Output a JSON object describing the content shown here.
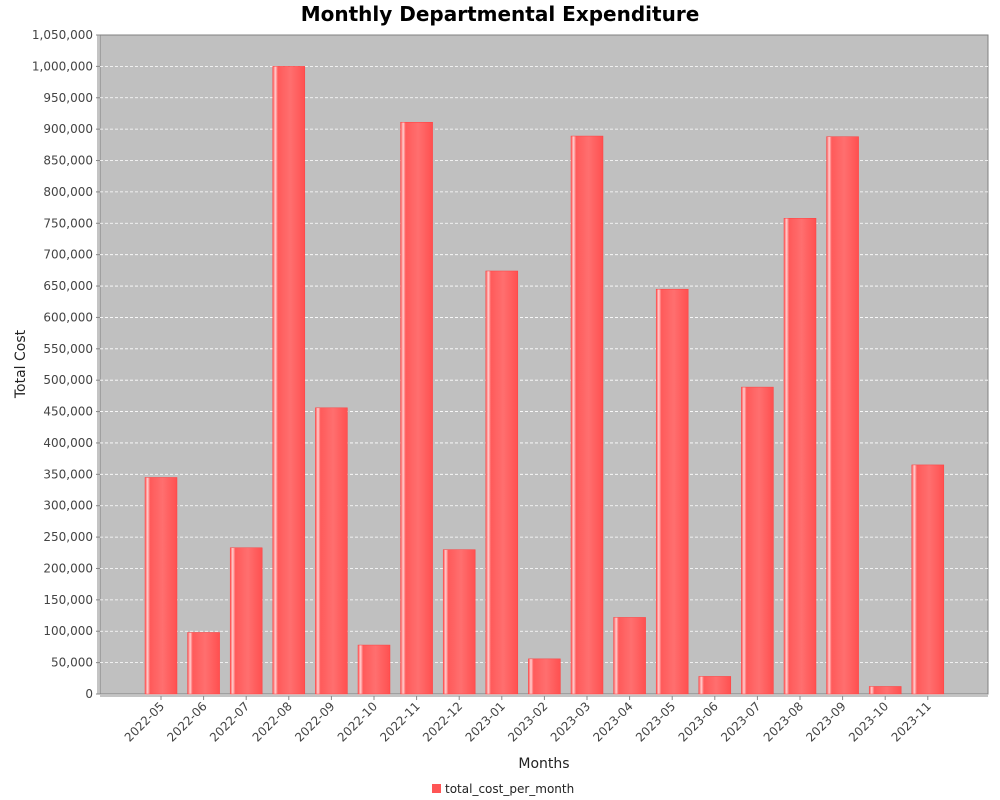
{
  "chart_data": {
    "type": "bar",
    "title": "Monthly Departmental Expenditure",
    "xlabel": "Months",
    "ylabel": "Total Cost",
    "categories": [
      "2022-05",
      "2022-06",
      "2022-07",
      "2022-08",
      "2022-09",
      "2022-10",
      "2022-11",
      "2022-12",
      "2023-01",
      "2023-02",
      "2023-03",
      "2023-04",
      "2023-05",
      "2023-06",
      "2023-07",
      "2023-08",
      "2023-09",
      "2023-10",
      "2023-11"
    ],
    "series": [
      {
        "name": "total_cost_per_month",
        "values": [
          345000,
          98000,
          233000,
          1000000,
          456000,
          78000,
          911000,
          230000,
          674000,
          56000,
          889000,
          122000,
          645000,
          28000,
          489000,
          758000,
          888000,
          12000,
          365000
        ]
      }
    ],
    "ylim": [
      0,
      1050000
    ],
    "ytick_step": 50000,
    "grid": true,
    "legend_position": "bottom",
    "colors": {
      "bar": "#ff5555",
      "plot_bg": "#c0c0c0",
      "grid": "#ffffff"
    }
  }
}
